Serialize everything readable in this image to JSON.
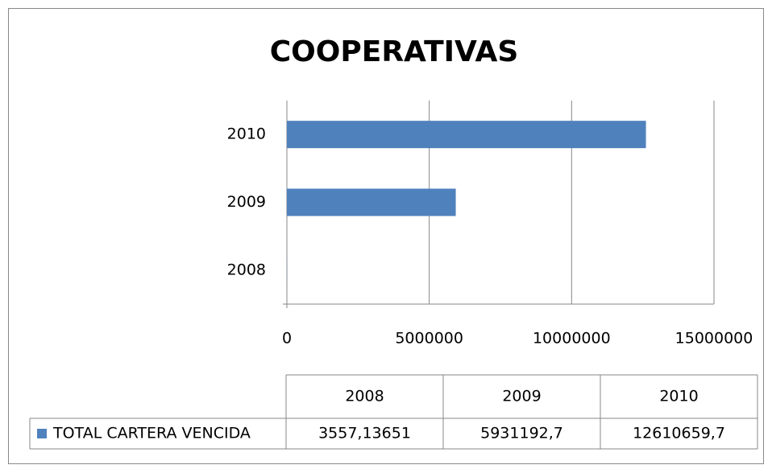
{
  "chart_data": {
    "type": "bar",
    "orientation": "horizontal",
    "title": "COOPERATIVAS",
    "categories": [
      "2008",
      "2009",
      "2010"
    ],
    "series": [
      {
        "name": "TOTAL CARTERA VENCIDA",
        "color": "#4f81bd",
        "values": [
          3557.13651,
          5931192.7,
          12610659.7
        ],
        "value_labels": [
          "3557,13651",
          "5931192,7",
          "12610659,7"
        ]
      }
    ],
    "xlim": [
      0,
      15000000
    ],
    "xticks": [
      0,
      5000000,
      10000000,
      15000000
    ],
    "grid": true,
    "data_table": true
  }
}
